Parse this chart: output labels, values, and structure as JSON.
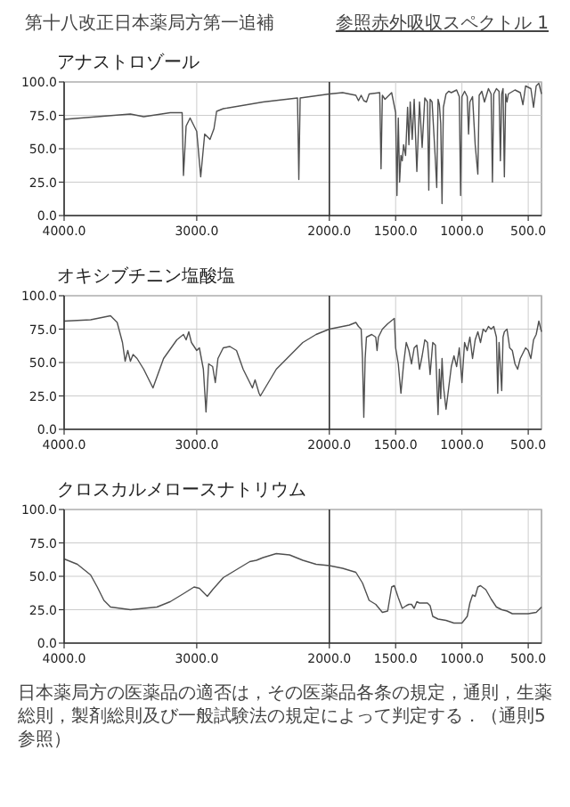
{
  "chart_data": [
    {
      "type": "line",
      "title": "アナストロゾール",
      "annotations": [
        "第十八改正日本薬局方第一追補",
        "参照赤外吸収スペクトル 1"
      ],
      "color": "#505050",
      "grid": true,
      "marker": "none",
      "line_style": "solid",
      "xlim": [
        4000,
        400
      ],
      "xticks": [
        {
          "value": 4000,
          "label": "4000.0"
        },
        {
          "value": 3000,
          "label": "3000.0"
        },
        {
          "value": 2000,
          "label": "2000.0"
        },
        {
          "value": 1500,
          "label": "1500.0"
        },
        {
          "value": 1000,
          "label": "1000.0"
        },
        {
          "value": 500,
          "label": "500.0"
        }
      ],
      "ylim": [
        0,
        100
      ],
      "yticks": [
        {
          "value": 0,
          "label": "0.0"
        },
        {
          "value": 25,
          "label": "25.0"
        },
        {
          "value": 50,
          "label": "50.0"
        },
        {
          "value": 75,
          "label": "75.0"
        },
        {
          "value": 100,
          "label": "100.0"
        }
      ],
      "ref_lines": [
        {
          "axis": "x",
          "value": 2000,
          "color": "#303030"
        }
      ],
      "x": [
        4000,
        3500,
        3400,
        3200,
        3110,
        3100,
        3080,
        3050,
        3000,
        2970,
        2940,
        2900,
        2870,
        2850,
        2800,
        2500,
        2240,
        2230,
        2220,
        2000,
        1900,
        1800,
        1780,
        1760,
        1740,
        1720,
        1700,
        1620,
        1610,
        1600,
        1580,
        1530,
        1500,
        1490,
        1480,
        1470,
        1460,
        1450,
        1440,
        1425,
        1410,
        1400,
        1390,
        1375,
        1360,
        1340,
        1320,
        1300,
        1280,
        1260,
        1250,
        1240,
        1225,
        1200,
        1190,
        1180,
        1170,
        1160,
        1150,
        1140,
        1120,
        1100,
        1080,
        1060,
        1040,
        1020,
        1010,
        1000,
        980,
        960,
        950,
        940,
        920,
        900,
        880,
        870,
        850,
        830,
        800,
        780,
        770,
        760,
        740,
        720,
        710,
        700,
        690,
        680,
        670,
        660,
        650,
        600,
        560,
        540,
        520,
        480,
        460,
        440,
        420,
        400
      ],
      "values": [
        72,
        76,
        74,
        77,
        77,
        30,
        67,
        73,
        63,
        29,
        61,
        57,
        65,
        78,
        80,
        85,
        88,
        27,
        88,
        91,
        92,
        90,
        86,
        90,
        86,
        85,
        91,
        92,
        35,
        90,
        87,
        92,
        77,
        15,
        73,
        25,
        45,
        41,
        53,
        45,
        81,
        53,
        85,
        57,
        87,
        33,
        85,
        51,
        88,
        85,
        19,
        87,
        85,
        41,
        21,
        87,
        83,
        69,
        9,
        81,
        91,
        93,
        92,
        93,
        94,
        89,
        15,
        89,
        93,
        89,
        61,
        85,
        89,
        53,
        31,
        90,
        93,
        85,
        95,
        91,
        25,
        91,
        95,
        93,
        41,
        91,
        95,
        29,
        91,
        85,
        91,
        94,
        92,
        83,
        97,
        95,
        81,
        97,
        99,
        91
      ]
    },
    {
      "type": "line",
      "title": "オキシブチニン塩酸塩",
      "color": "#505050",
      "grid": true,
      "marker": "none",
      "line_style": "solid",
      "xlim": [
        4000,
        400
      ],
      "xticks": [
        {
          "value": 4000,
          "label": "4000.0"
        },
        {
          "value": 3000,
          "label": "3000.0"
        },
        {
          "value": 2000,
          "label": "2000.0"
        },
        {
          "value": 1500,
          "label": "1500.0"
        },
        {
          "value": 1000,
          "label": "1000.0"
        },
        {
          "value": 500,
          "label": "500.0"
        }
      ],
      "ylim": [
        0,
        100
      ],
      "yticks": [
        {
          "value": 0,
          "label": "0.0"
        },
        {
          "value": 25,
          "label": "25.0"
        },
        {
          "value": 50,
          "label": "50.0"
        },
        {
          "value": 75,
          "label": "75.0"
        },
        {
          "value": 100,
          "label": "100.0"
        }
      ],
      "ref_lines": [
        {
          "axis": "x",
          "value": 2000,
          "color": "#303030"
        }
      ],
      "x": [
        4000,
        3800,
        3700,
        3650,
        3600,
        3560,
        3540,
        3520,
        3500,
        3480,
        3450,
        3400,
        3330,
        3250,
        3150,
        3100,
        3080,
        3060,
        3040,
        3000,
        2980,
        2950,
        2930,
        2910,
        2880,
        2860,
        2840,
        2800,
        2750,
        2700,
        2650,
        2620,
        2580,
        2560,
        2530,
        2520,
        2400,
        2200,
        2100,
        2000,
        1900,
        1850,
        1800,
        1780,
        1760,
        1750,
        1740,
        1730,
        1720,
        1680,
        1650,
        1640,
        1630,
        1600,
        1560,
        1510,
        1500,
        1480,
        1460,
        1440,
        1420,
        1400,
        1380,
        1360,
        1340,
        1320,
        1300,
        1280,
        1260,
        1240,
        1220,
        1200,
        1180,
        1170,
        1160,
        1150,
        1140,
        1120,
        1100,
        1080,
        1060,
        1040,
        1020,
        1000,
        980,
        960,
        940,
        920,
        900,
        880,
        860,
        840,
        820,
        800,
        780,
        760,
        740,
        730,
        720,
        700,
        690,
        680,
        660,
        640,
        620,
        600,
        580,
        560,
        540,
        520,
        500,
        480,
        460,
        440,
        420,
        400
      ],
      "values": [
        81,
        82,
        84,
        85,
        80,
        65,
        51,
        59,
        51,
        56,
        53,
        45,
        31,
        53,
        67,
        71,
        67,
        73,
        65,
        59,
        61,
        45,
        13,
        49,
        47,
        35,
        53,
        61,
        62,
        59,
        45,
        39,
        31,
        37,
        27,
        25,
        45,
        65,
        71,
        75,
        77,
        78,
        80,
        77,
        75,
        53,
        9,
        53,
        69,
        71,
        69,
        59,
        69,
        75,
        79,
        83,
        61,
        49,
        27,
        49,
        65,
        59,
        49,
        61,
        63,
        45,
        55,
        67,
        65,
        41,
        65,
        63,
        11,
        45,
        23,
        53,
        33,
        15,
        31,
        47,
        55,
        47,
        61,
        35,
        65,
        59,
        69,
        53,
        67,
        73,
        65,
        75,
        73,
        77,
        75,
        77,
        69,
        27,
        65,
        29,
        69,
        73,
        75,
        61,
        59,
        49,
        45,
        53,
        57,
        61,
        59,
        53,
        67,
        71,
        81,
        73
      ]
    },
    {
      "type": "line",
      "title": "クロスカルメロースナトリウム",
      "annotations": [
        "日本薬局方の医薬品の適否は，その医薬品各条の規定，通則，生薬総則，製剤総則及び一般試験法の規定によって判定する．（通則5参照）"
      ],
      "color": "#505050",
      "grid": true,
      "marker": "none",
      "line_style": "solid",
      "xlim": [
        4000,
        400
      ],
      "xticks": [
        {
          "value": 4000,
          "label": "4000.0"
        },
        {
          "value": 3000,
          "label": "3000.0"
        },
        {
          "value": 2000,
          "label": "2000.0"
        },
        {
          "value": 1500,
          "label": "1500.0"
        },
        {
          "value": 1000,
          "label": "1000.0"
        },
        {
          "value": 500,
          "label": "500.0"
        }
      ],
      "ylim": [
        0,
        100
      ],
      "yticks": [
        {
          "value": 0,
          "label": "0.0"
        },
        {
          "value": 25,
          "label": "25.0"
        },
        {
          "value": 50,
          "label": "50.0"
        },
        {
          "value": 75,
          "label": "75.0"
        },
        {
          "value": 100,
          "label": "100.0"
        }
      ],
      "ref_lines": [
        {
          "axis": "x",
          "value": 2000,
          "color": "#303030"
        }
      ],
      "x": [
        4000,
        3900,
        3800,
        3750,
        3700,
        3650,
        3500,
        3400,
        3300,
        3200,
        3100,
        3020,
        2980,
        2950,
        2920,
        2880,
        2800,
        2700,
        2600,
        2550,
        2500,
        2400,
        2300,
        2200,
        2100,
        2000,
        1900,
        1800,
        1750,
        1700,
        1650,
        1600,
        1560,
        1530,
        1510,
        1480,
        1450,
        1420,
        1400,
        1380,
        1360,
        1340,
        1320,
        1300,
        1260,
        1240,
        1220,
        1180,
        1120,
        1060,
        1020,
        1000,
        960,
        940,
        920,
        900,
        880,
        860,
        820,
        780,
        740,
        700,
        660,
        620,
        580,
        500,
        440,
        400
      ],
      "values": [
        63,
        59,
        51,
        42,
        32,
        27,
        25,
        26,
        27,
        31,
        37,
        42,
        41,
        38,
        35,
        40,
        49,
        55,
        61,
        62,
        64,
        67,
        66,
        62,
        59,
        58,
        56,
        53,
        45,
        32,
        29,
        23,
        24,
        42,
        43,
        34,
        26,
        28,
        29,
        29,
        26,
        31,
        30,
        30,
        30,
        28,
        20,
        18,
        17,
        15,
        15,
        15,
        20,
        30,
        36,
        35,
        42,
        43,
        40,
        33,
        27,
        25,
        24,
        22,
        22,
        22,
        23,
        27
      ]
    }
  ]
}
